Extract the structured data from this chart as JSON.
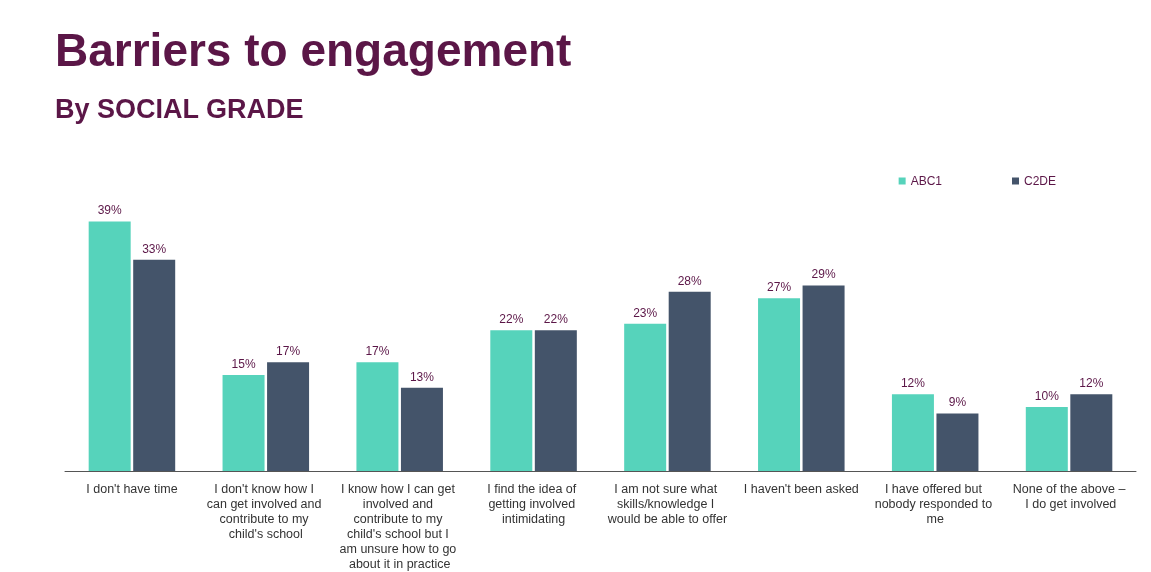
{
  "chart_data": {
    "type": "bar",
    "title": "Barriers to engagement",
    "subtitle": "By SOCIAL GRADE",
    "categories": [
      "I don't have time",
      "I don't know how I can get involved and contribute to my child's school",
      "I know how I can get involved and contribute to my child's school but I am unsure how to go about it in practice",
      "I find the idea of getting involved intimidating",
      "I am not sure what skills/knowledge I would be able to offer",
      "I haven't been asked",
      "I have offered but nobody responded to me",
      "None of the above – I do get involved"
    ],
    "series": [
      {
        "name": "ABC1",
        "color": "#56d3bb",
        "values": [
          39,
          15,
          17,
          22,
          23,
          27,
          12,
          10
        ],
        "value_labels": [
          "39%",
          "15%",
          "17%",
          "22%",
          "23%",
          "27%",
          "12%",
          "10%"
        ]
      },
      {
        "name": "C2DE",
        "color": "#44546a",
        "values": [
          33,
          17,
          13,
          22,
          28,
          29,
          9,
          12
        ],
        "value_labels": [
          "33%",
          "17%",
          "13%",
          "22%",
          "28%",
          "29%",
          "9%",
          "12%"
        ]
      }
    ],
    "legend": "top right"
  }
}
